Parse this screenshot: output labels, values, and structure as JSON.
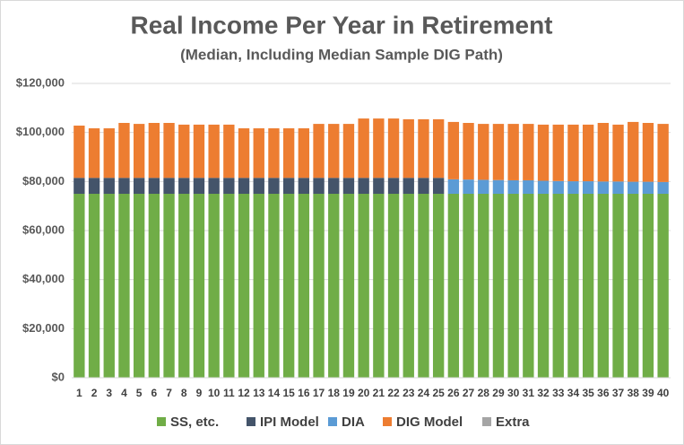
{
  "chart_data": {
    "type": "stacked_bar",
    "title": "Real Income Per Year in Retirement",
    "subtitle": "(Median, Including Median Sample DIG Path)",
    "categories": [
      "1",
      "2",
      "3",
      "4",
      "5",
      "6",
      "7",
      "8",
      "9",
      "10",
      "11",
      "12",
      "13",
      "14",
      "15",
      "16",
      "17",
      "18",
      "19",
      "20",
      "21",
      "22",
      "23",
      "24",
      "25",
      "26",
      "27",
      "28",
      "29",
      "30",
      "31",
      "32",
      "33",
      "34",
      "35",
      "36",
      "37",
      "38",
      "39",
      "40"
    ],
    "series": [
      {
        "name": "SS, etc.",
        "color": "#70ad47",
        "values": [
          75000,
          75000,
          75000,
          75000,
          75000,
          75000,
          75000,
          75000,
          75000,
          75000,
          75000,
          75000,
          75000,
          75000,
          75000,
          75000,
          75000,
          75000,
          75000,
          75000,
          75000,
          75000,
          75000,
          75000,
          75000,
          75000,
          75000,
          75000,
          75000,
          75000,
          75000,
          75000,
          75000,
          75000,
          75000,
          75000,
          75000,
          75000,
          75000,
          75000
        ]
      },
      {
        "name": "IPI Model",
        "color": "#44546a",
        "values": [
          6500,
          6500,
          6500,
          6500,
          6500,
          6500,
          6500,
          6500,
          6500,
          6500,
          6500,
          6500,
          6500,
          6500,
          6500,
          6500,
          6500,
          6500,
          6500,
          6500,
          6500,
          6500,
          6500,
          6500,
          6500,
          0,
          0,
          0,
          0,
          0,
          0,
          0,
          0,
          0,
          0,
          0,
          0,
          0,
          0,
          0
        ]
      },
      {
        "name": "DIA",
        "color": "#5b9bd5",
        "values": [
          0,
          0,
          0,
          0,
          0,
          0,
          0,
          0,
          0,
          0,
          0,
          0,
          0,
          0,
          0,
          0,
          0,
          0,
          0,
          0,
          0,
          0,
          0,
          0,
          0,
          5900,
          5800,
          5700,
          5600,
          5500,
          5500,
          5300,
          5200,
          5100,
          5100,
          5000,
          5000,
          4900,
          4900,
          4800
        ]
      },
      {
        "name": "DIG Model",
        "color": "#ed7d31",
        "values": [
          21300,
          20200,
          20200,
          22400,
          22000,
          22400,
          22400,
          21700,
          21700,
          21700,
          21700,
          20200,
          20200,
          20200,
          20200,
          20200,
          22000,
          22000,
          22000,
          24200,
          24200,
          24200,
          23900,
          23900,
          23900,
          23400,
          23100,
          22800,
          22900,
          23000,
          23000,
          22900,
          23000,
          23100,
          23100,
          23900,
          23200,
          24400,
          24000,
          23700
        ]
      },
      {
        "name": "Extra",
        "color": "#a5a5a5",
        "values": [
          0,
          0,
          0,
          0,
          0,
          0,
          0,
          0,
          0,
          0,
          0,
          0,
          0,
          0,
          0,
          0,
          0,
          0,
          0,
          0,
          0,
          0,
          0,
          0,
          0,
          0,
          0,
          0,
          0,
          0,
          0,
          0,
          0,
          0,
          0,
          0,
          0,
          0,
          0,
          0
        ]
      }
    ],
    "ylim": [
      0,
      120000
    ],
    "yticks": [
      {
        "value": 0,
        "label": "$0"
      },
      {
        "value": 20000,
        "label": "$20,000"
      },
      {
        "value": 40000,
        "label": "$40,000"
      },
      {
        "value": 60000,
        "label": "$60,000"
      },
      {
        "value": 80000,
        "label": "$80,000"
      },
      {
        "value": 100000,
        "label": "$100,000"
      },
      {
        "value": 120000,
        "label": "$120,000"
      }
    ],
    "grid": true
  }
}
